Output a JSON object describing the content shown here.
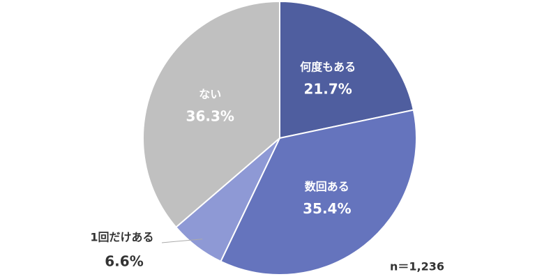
{
  "chart_data": {
    "type": "pie",
    "categories": [
      "何度もある",
      "数回ある",
      "1回だけある",
      "ない"
    ],
    "values": [
      21.7,
      35.4,
      6.6,
      36.3
    ],
    "value_labels": [
      "21.7%",
      "35.4%",
      "6.6%",
      "36.3%"
    ],
    "colors": [
      "#4f5e9f",
      "#6574bd",
      "#8e99d5",
      "#c0c0c0"
    ],
    "annotation": "n＝1,236"
  }
}
